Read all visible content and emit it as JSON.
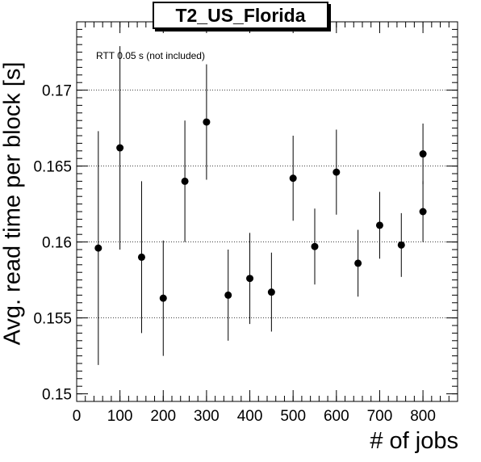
{
  "chart_data": {
    "type": "scatter",
    "title": "T2_US_Florida",
    "xlabel": "# of jobs",
    "ylabel": "Avg. read time per block [s]",
    "annotation": "RTT 0.05 s (not included)",
    "xlim": [
      0,
      880
    ],
    "ylim": [
      0.1495,
      0.1745
    ],
    "xticks": [
      0,
      100,
      200,
      300,
      400,
      500,
      600,
      700,
      800
    ],
    "yticks": [
      0.15,
      0.155,
      0.16,
      0.165,
      0.17
    ],
    "ytick_labels": [
      "0.15",
      "0.155",
      "0.16",
      "0.165",
      "0.17"
    ],
    "grid": "y-dotted",
    "points": [
      {
        "x": 50,
        "y": 0.1596,
        "err": 0.0077
      },
      {
        "x": 100,
        "y": 0.1662,
        "err": 0.0067
      },
      {
        "x": 150,
        "y": 0.159,
        "err": 0.005
      },
      {
        "x": 200,
        "y": 0.1563,
        "err": 0.0038
      },
      {
        "x": 250,
        "y": 0.164,
        "err": 0.004
      },
      {
        "x": 300,
        "y": 0.1679,
        "err": 0.0038
      },
      {
        "x": 350,
        "y": 0.1565,
        "err": 0.003
      },
      {
        "x": 400,
        "y": 0.1576,
        "err": 0.003
      },
      {
        "x": 450,
        "y": 0.1567,
        "err": 0.0026
      },
      {
        "x": 500,
        "y": 0.1642,
        "err": 0.0028
      },
      {
        "x": 550,
        "y": 0.1597,
        "err": 0.0025
      },
      {
        "x": 600,
        "y": 0.1646,
        "err": 0.0028
      },
      {
        "x": 650,
        "y": 0.1586,
        "err": 0.0022
      },
      {
        "x": 700,
        "y": 0.1611,
        "err": 0.0022
      },
      {
        "x": 750,
        "y": 0.1598,
        "err": 0.0021
      },
      {
        "x": 800,
        "y": 0.1658,
        "err": 0.002
      },
      {
        "x": 800,
        "y": 0.162,
        "err": 0.002
      }
    ]
  }
}
